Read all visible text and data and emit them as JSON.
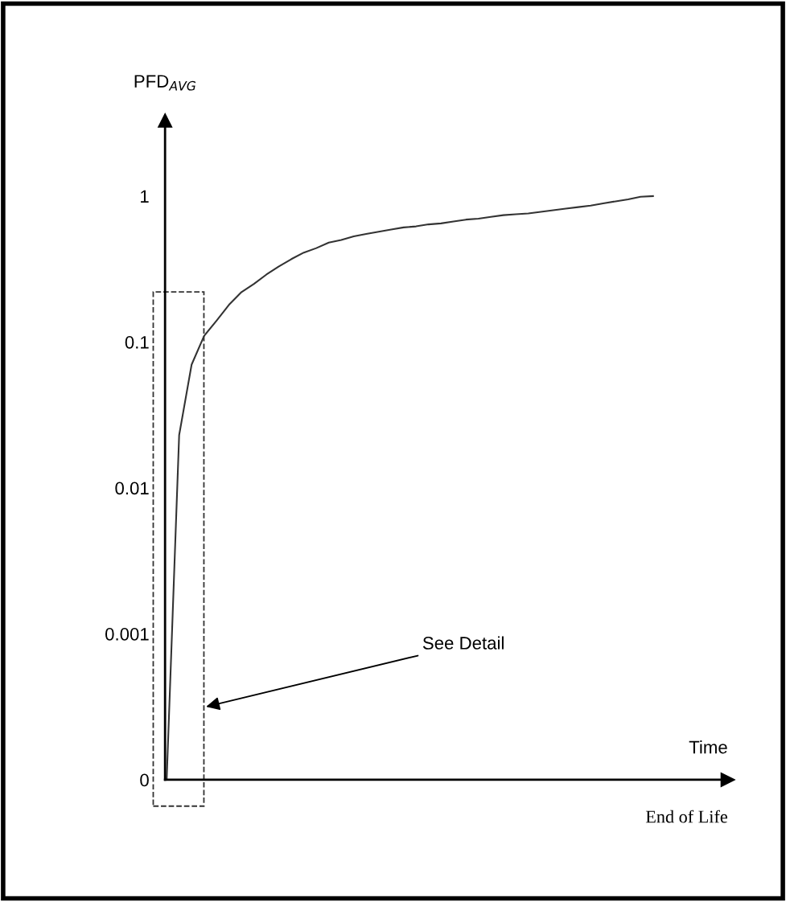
{
  "chart_data": {
    "type": "line",
    "ylabel": "PFD$_{AVG}$",
    "xlabel": "Time",
    "categories": [
      null,
      null,
      null,
      null,
      null,
      null,
      null,
      null,
      null,
      null,
      null,
      null,
      null,
      null,
      null,
      null,
      null,
      null,
      null,
      null,
      null,
      null,
      null,
      null,
      null,
      null,
      null,
      null,
      null,
      null,
      null,
      null,
      null,
      null,
      null,
      null,
      null,
      null,
      null,
      null
    ],
    "series": [
      {
        "color": "#333333",
        "values": [
          0.0001,
          0.023,
          0.07,
          0.11,
          0.14,
          0.18,
          0.22,
          0.25,
          0.29,
          0.33,
          0.37,
          0.41,
          0.44,
          0.48,
          0.5,
          0.53,
          0.55,
          0.57,
          0.59,
          0.61,
          0.62,
          0.64,
          0.65,
          0.67,
          0.69,
          0.7,
          0.72,
          0.74,
          0.75,
          0.76,
          0.78,
          0.8,
          0.82,
          0.84,
          0.86,
          0.89,
          0.92,
          0.95,
          0.99,
          1.0
        ]
      }
    ],
    "log": "y",
    "ylim": [
      0.0001,
      3.3
    ],
    "yticks": [
      {
        "value": 0.0001,
        "label": "0"
      },
      {
        "value": 0.001,
        "label": "0.001"
      },
      {
        "value": 0.01,
        "label": "0.01"
      },
      {
        "value": 0.1,
        "label": "0.1"
      },
      {
        "value": 1,
        "label": "1"
      }
    ],
    "tick_labels": "y",
    "grid": false,
    "marker": "none",
    "line_style": "solid",
    "annotations": [
      "See Detail",
      "End of Life"
    ]
  }
}
